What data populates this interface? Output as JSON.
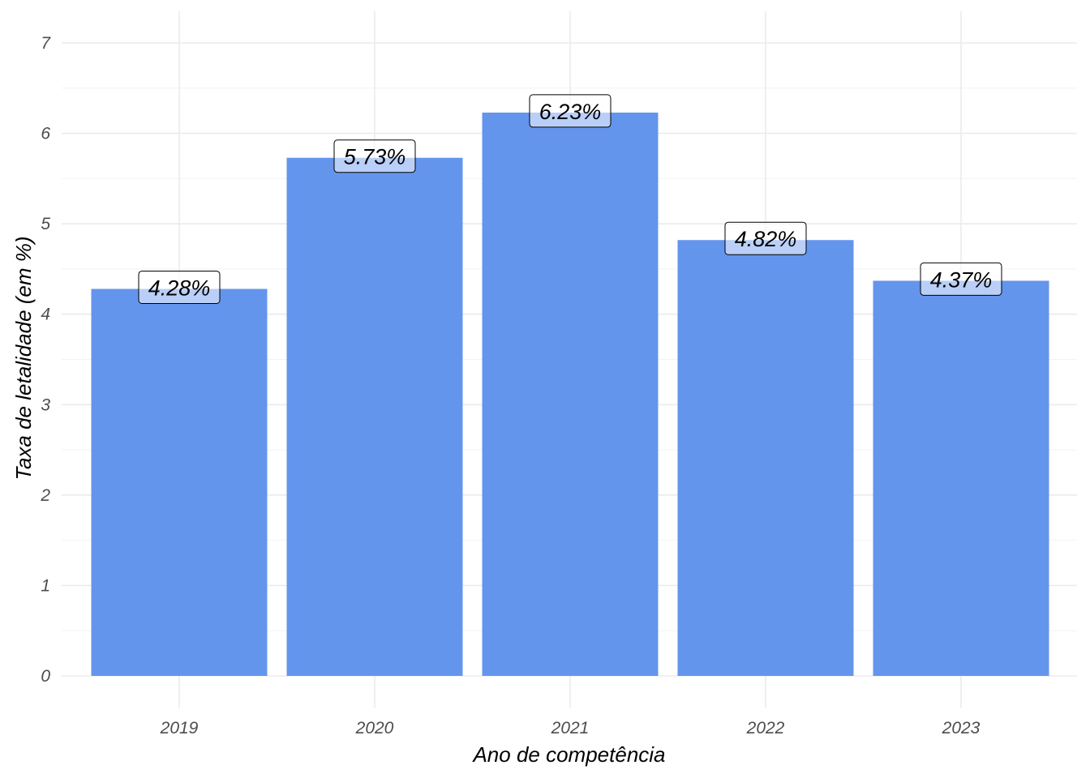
{
  "chart_data": {
    "type": "bar",
    "categories": [
      "2019",
      "2020",
      "2021",
      "2022",
      "2023"
    ],
    "values": [
      4.28,
      5.73,
      6.23,
      4.82,
      4.37
    ],
    "data_labels": [
      "4.28%",
      "5.73%",
      "6.23%",
      "4.82%",
      "4.37%"
    ],
    "xlabel": "Ano de competência",
    "ylabel": "Taxa de letalidade (em %)",
    "ylim": [
      0,
      7
    ],
    "yticks": [
      "0",
      "1",
      "2",
      "3",
      "4",
      "5",
      "6",
      "7"
    ],
    "grid": true,
    "bar_color": "#6495ED"
  }
}
